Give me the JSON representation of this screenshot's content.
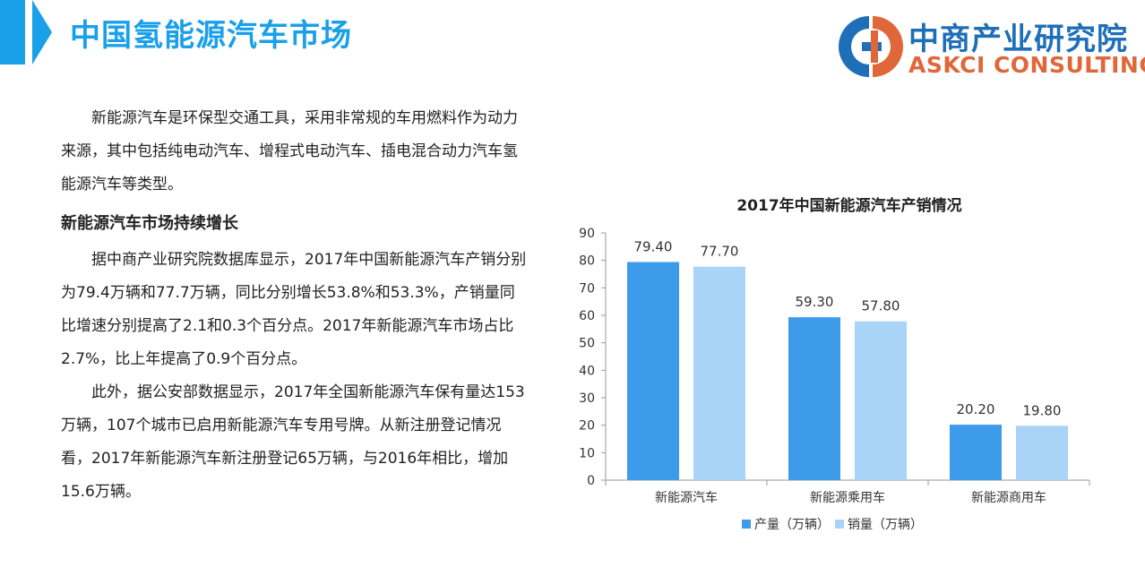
{
  "header": {
    "title": "中国氢能源汽车市场",
    "logo_cn": "中商产业研究院",
    "logo_en": "ASKCI CONSULTING"
  },
  "text": {
    "intro": "新能源汽车是环保型交通工具，采用非常规的车用燃料作为动力来源，其中包括纯电动汽车、增程式电动汽车、插电混合动力汽车氢能源汽车等类型。",
    "subheading": "新能源汽车市场持续增长",
    "para1": "据中商产业研究院数据库显示，2017年中国新能源汽车产销分别为79.4万辆和77.7万辆，同比分别增长53.8%和53.3%，产销量同比增速分别提高了2.1和0.3个百分点。2017年新能源汽车市场占比2.7%，比上年提高了0.9个百分点。",
    "para2": "此外，据公安部数据显示，2017年全国新能源汽车保有量达153万辆，107个城市已启用新能源汽车专用号牌。从新注册登记情况看，2017年新能源汽车新注册登记65万辆，与2016年相比，增加15.6万辆。"
  },
  "chart_data": {
    "type": "bar",
    "title": "2017年中国新能源汽车产销情况",
    "categories": [
      "新能源汽车",
      "新能源乘用车",
      "新能源商用车"
    ],
    "series": [
      {
        "name": "产量（万辆）",
        "values": [
          79.4,
          59.3,
          20.2
        ],
        "labels": [
          "79.40",
          "59.30",
          "20.20"
        ],
        "color": "#3d9be9"
      },
      {
        "name": "销量（万辆）",
        "values": [
          77.7,
          57.8,
          19.8
        ],
        "labels": [
          "77.70",
          "57.80",
          "19.80"
        ],
        "color": "#a9d3f7"
      }
    ],
    "ylim": [
      0,
      90
    ],
    "yticks": [
      0,
      10,
      20,
      30,
      40,
      50,
      60,
      70,
      80,
      90
    ],
    "grid": false,
    "legend": "bottom"
  }
}
